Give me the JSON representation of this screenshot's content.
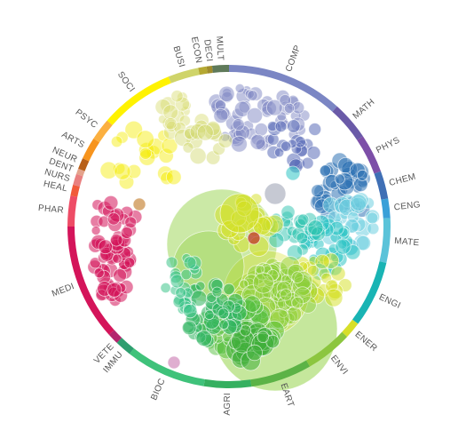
{
  "chart_data": {
    "type": "scatter",
    "subject_areas": [
      {
        "label": "COMP",
        "start": 0,
        "end": 42,
        "color": "#7b86c4"
      },
      {
        "label": "MATH",
        "start": 42,
        "end": 56,
        "color": "#6a5aa8"
      },
      {
        "label": "PHYS",
        "start": 56,
        "end": 70,
        "color": "#7d4fa8"
      },
      {
        "label": "CHEM",
        "start": 70,
        "end": 80,
        "color": "#3f6fb5"
      },
      {
        "label": "CENG",
        "start": 80,
        "end": 87,
        "color": "#3aa0d8"
      },
      {
        "label": "MATE",
        "start": 87,
        "end": 103,
        "color": "#5bc3d9"
      },
      {
        "label": "ENGI",
        "start": 103,
        "end": 127,
        "color": "#19b4b4"
      },
      {
        "label": "ENER",
        "start": 127,
        "end": 133,
        "color": "#d7df2a"
      },
      {
        "label": "ENVI",
        "start": 133,
        "end": 150,
        "color": "#8cc63f"
      },
      {
        "label": "EART",
        "start": 150,
        "end": 172,
        "color": "#5cb346"
      },
      {
        "label": "AGRI",
        "start": 172,
        "end": 189,
        "color": "#35b060"
      },
      {
        "label": "BIOC",
        "start": 189,
        "end": 218,
        "color": "#3fc27a"
      },
      {
        "label": "IMMU",
        "start": 218,
        "end": 224,
        "color": "#2e9e6f"
      },
      {
        "label": "VETE",
        "start": 224,
        "end": 228,
        "color": "#b3256e"
      },
      {
        "label": "MEDI",
        "start": 228,
        "end": 270,
        "color": "#d4145a"
      },
      {
        "label": "PHAR",
        "start": 270,
        "end": 281,
        "color": "#ee4c66"
      },
      {
        "label": "HEAL",
        "start": 281,
        "end": 285,
        "color": "#f15a3a"
      },
      {
        "label": "NURS",
        "start": 285,
        "end": 289,
        "color": "#e98080"
      },
      {
        "label": "DENT",
        "start": 289,
        "end": 291,
        "color": "#e4a38c"
      },
      {
        "label": "NEUR",
        "start": 291,
        "end": 295,
        "color": "#b86018"
      },
      {
        "label": "ARTS",
        "start": 295,
        "end": 303,
        "color": "#f7941d"
      },
      {
        "label": "PSYC",
        "start": 303,
        "end": 311,
        "color": "#fbb040"
      },
      {
        "label": "SOCI",
        "start": 311,
        "end": 338,
        "color": "#fff200"
      },
      {
        "label": "BUSI",
        "start": 338,
        "end": 349,
        "color": "#cfd46a"
      },
      {
        "label": "ECON",
        "start": 349,
        "end": 352,
        "color": "#b5a832"
      },
      {
        "label": "DECI",
        "start": 352,
        "end": 354,
        "color": "#a08c2c"
      },
      {
        "label": "MULT",
        "start": 354,
        "end": 360,
        "color": "#5f7a5a"
      }
    ],
    "circle_colors": {
      "comp": "#8088c4",
      "phys": "#2f73b5",
      "mate": "#6fd0e0",
      "engi": "#2ec4c4",
      "ener": "#d4e020",
      "envi": "#8ccf3a",
      "eart": "#56c040",
      "agri": "#2fb560",
      "bioc": "#3ec48a",
      "medi": "#d4145a",
      "soci": "#f5ea00",
      "busi": "#d6dc6e",
      "other": "#e5d09a"
    }
  }
}
